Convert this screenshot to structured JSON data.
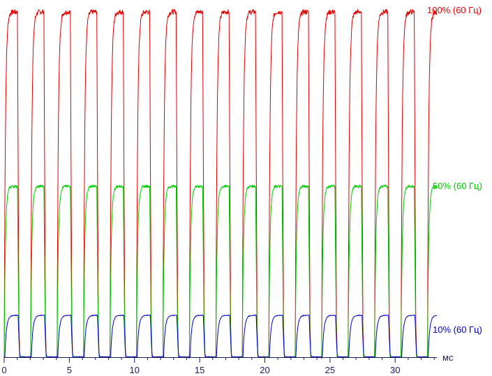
{
  "chart_data": {
    "type": "line",
    "title": "",
    "xlabel": "мс",
    "ylabel": "",
    "xlim": [
      0,
      33.2
    ],
    "ylim": [
      0,
      100
    ],
    "x_ticks": [
      0,
      5,
      10,
      15,
      20,
      25,
      30
    ],
    "x_tick_labels": [
      "0",
      "5",
      "10",
      "15",
      "20",
      "25",
      "30"
    ],
    "grid": false,
    "legend": "right",
    "period_ms": 2.03,
    "pulse_count": 17,
    "series": [
      {
        "name": "100% (60 Гц)",
        "color": "#e00000",
        "high": 99,
        "low": 0,
        "duty": 0.5
      },
      {
        "name": "50% (60 Гц)",
        "color": "#00cc00",
        "high": 49,
        "low": 0,
        "duty": 0.5
      },
      {
        "name": "10% (60 Гц)",
        "color": "#0000cc",
        "high": 12,
        "low": 0,
        "duty": 0.5
      }
    ]
  }
}
